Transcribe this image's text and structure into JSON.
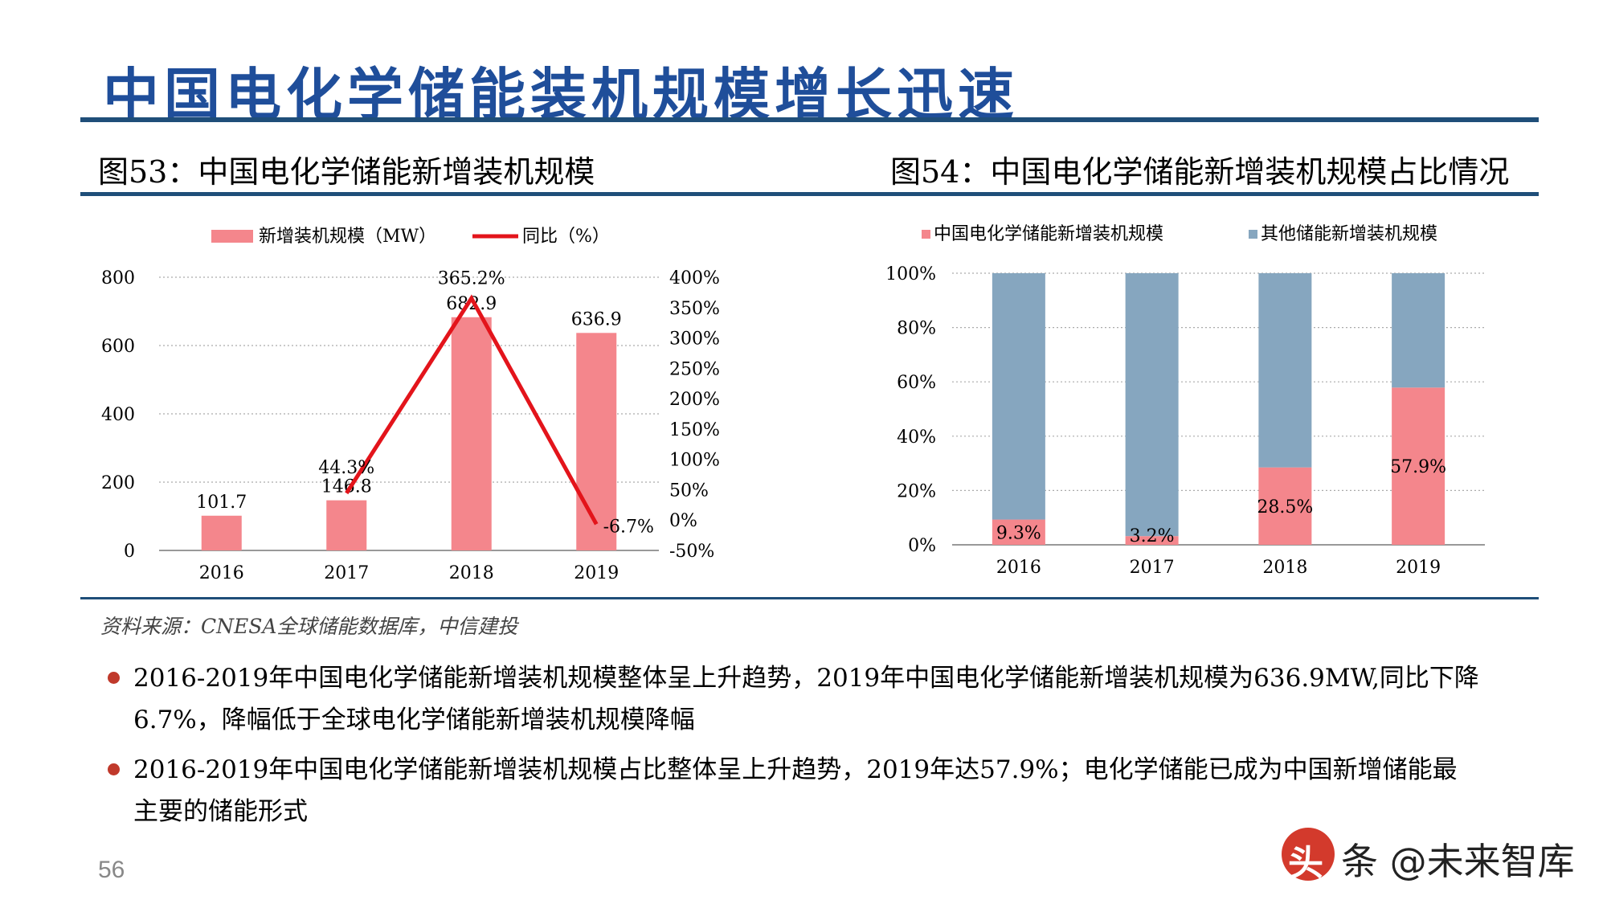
{
  "page": {
    "title": "中国电化学储能装机规模增长迅速",
    "source": "资料来源：CNESA全球储能数据库，中信建投",
    "bullets": [
      {
        "line1": "2016-2019年中国电化学储能新增装机规模整体呈上升趋势，2019年中国电化学储能新增装机规模为636.9MW,同比下降",
        "line2": "6.7%，降幅低于全球电化学储能新增装机规模降幅"
      },
      {
        "line1": "2016-2019年中国电化学储能新增装机规模占比整体呈上升趋势，2019年达57.9%；电化学储能已成为中国新增储能最",
        "line2": "主要的储能形式"
      }
    ],
    "page_number": "56",
    "watermark_char": "头",
    "watermark_text": "条 @未来智库",
    "accent_color": "#1f4e9a",
    "rule_color": "#1f4e79",
    "bullet_color": "#c0392b"
  },
  "chart_data": [
    {
      "type": "bar",
      "title": "图53：中国电化学储能新增装机规模",
      "categories": [
        "2016",
        "2017",
        "2018",
        "2019"
      ],
      "series": [
        {
          "name": "新增装机规模（MW）",
          "values": [
            101.7,
            146.8,
            682.9,
            636.9
          ],
          "labels": [
            "101.7",
            "146.8",
            "682.9",
            "636.9"
          ],
          "color": "#f4868c",
          "axis": "left"
        },
        {
          "name": "同比（%）",
          "type": "line",
          "x": [
            "2017",
            "2018",
            "2019"
          ],
          "values": [
            44.3,
            365.2,
            -6.7
          ],
          "labels": [
            "44.3%",
            "365.2%",
            "-6.7%"
          ],
          "color": "#e3141b",
          "axis": "right"
        }
      ],
      "ylim": [
        0,
        800
      ],
      "yticks": [
        "0",
        "200",
        "400",
        "600",
        "800"
      ],
      "y2lim": [
        -50,
        400
      ],
      "y2ticks": [
        "-50%",
        "0%",
        "50%",
        "100%",
        "150%",
        "200%",
        "250%",
        "300%",
        "350%",
        "400%"
      ],
      "grid": "dotted-horizontal",
      "legend": "top"
    },
    {
      "type": "bar",
      "stacked": true,
      "title": "图54：中国电化学储能新增装机规模占比情况",
      "categories": [
        "2016",
        "2017",
        "2018",
        "2019"
      ],
      "series": [
        {
          "name": "中国电化学储能新增装机规模",
          "values": [
            9.3,
            3.2,
            28.5,
            57.9
          ],
          "labels": [
            "9.3%",
            "3.2%",
            "28.5%",
            "57.9%"
          ],
          "color": "#f4868c"
        },
        {
          "name": "其他储能新增装机规模",
          "values": [
            90.7,
            96.8,
            71.5,
            42.1
          ],
          "color": "#86a6bf"
        }
      ],
      "ylim": [
        0,
        100
      ],
      "yticks": [
        "0%",
        "20%",
        "40%",
        "60%",
        "80%",
        "100%"
      ],
      "grid": "dotted-horizontal",
      "legend": "top"
    }
  ]
}
